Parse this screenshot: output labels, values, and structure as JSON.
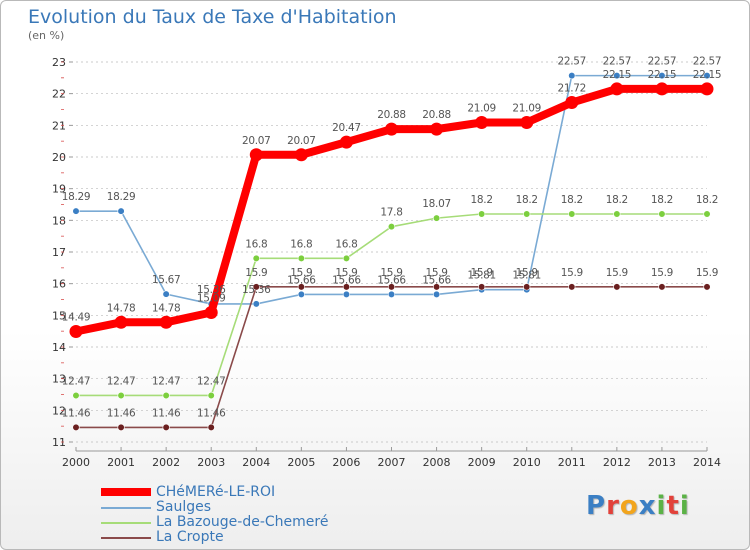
{
  "title": "Evolution du Taux de Taxe d'Habitation",
  "subtitle": "(en %)",
  "colors": {
    "title": "#3a78b8",
    "grid": "#bbbbbb",
    "axis_text": "#333333",
    "value_text": "#555555"
  },
  "logo": {
    "text": "Proxiti",
    "letters": [
      {
        "ch": "P",
        "color": "#3b7fc4"
      },
      {
        "ch": "r",
        "color": "#e2413a"
      },
      {
        "ch": "o",
        "color": "#f2a51d"
      },
      {
        "ch": "x",
        "color": "#3b7fc4"
      },
      {
        "ch": "i",
        "color": "#5bb246"
      },
      {
        "ch": "t",
        "color": "#e2413a"
      },
      {
        "ch": "i",
        "color": "#5bb246"
      }
    ]
  },
  "chart_data": {
    "type": "line",
    "title": "Evolution du Taux de Taxe d'Habitation",
    "ylabel": "(en %)",
    "xlabel": "",
    "x": [
      2000,
      2001,
      2002,
      2003,
      2004,
      2005,
      2006,
      2007,
      2008,
      2009,
      2010,
      2011,
      2012,
      2013,
      2014
    ],
    "y_ticks": [
      11,
      12,
      13,
      14,
      15,
      16,
      17,
      18,
      19,
      20,
      21,
      22,
      23
    ],
    "ylim": [
      11,
      23
    ],
    "grid": "horizontal dashed",
    "legend_position": "bottom-left",
    "series": [
      {
        "name": "CHéMERé-LE-ROI",
        "color": "#ff0000",
        "marker": "#ff0000",
        "values": [
          14.49,
          14.78,
          14.78,
          15.09,
          20.07,
          20.07,
          20.47,
          20.88,
          20.88,
          21.09,
          21.09,
          21.72,
          22.15,
          22.15,
          22.15
        ],
        "labels": [
          "14.49",
          "14.78",
          "14.78",
          "15.09",
          "20.07",
          "20.07",
          "20.47",
          "20.88",
          "20.88",
          "21.09",
          "21.09",
          "21.72",
          "22.15",
          "22.15",
          "22.15"
        ]
      },
      {
        "name": "Saulges",
        "color": "#7aaad4",
        "marker": "#3b7fc4",
        "values": [
          18.29,
          18.29,
          15.67,
          15.36,
          15.36,
          15.66,
          15.66,
          15.66,
          15.66,
          15.81,
          15.81,
          22.57,
          22.57,
          22.57,
          22.57
        ],
        "labels": [
          "18.29",
          "18.29",
          "15.67",
          "15.36",
          "15.36",
          "15.66",
          "15.66",
          "15.66",
          "15.66",
          "15.81",
          "15.81",
          "22.57",
          "22.57",
          "22.57",
          "22.57"
        ]
      },
      {
        "name": "La Bazouge-de-Chemeré",
        "color": "#a6dc78",
        "marker": "#7ccf3e",
        "values": [
          12.47,
          12.47,
          12.47,
          12.47,
          16.8,
          16.8,
          16.8,
          17.8,
          18.07,
          18.2,
          18.2,
          18.2,
          18.2,
          18.2,
          18.2
        ],
        "labels": [
          "12.47",
          "12.47",
          "12.47",
          "12.47",
          "16.8",
          "16.8",
          "16.8",
          "17.8",
          "18.07",
          "18.2",
          "18.2",
          "18.2",
          "18.2",
          "18.2",
          "18.2"
        ]
      },
      {
        "name": "La Cropte",
        "color": "#8a4a4a",
        "marker": "#6b2020",
        "values": [
          11.46,
          11.46,
          11.46,
          11.46,
          15.9,
          15.9,
          15.9,
          15.9,
          15.9,
          15.9,
          15.9,
          15.9,
          15.9,
          15.9,
          15.9
        ],
        "labels": [
          "11.46",
          "11.46",
          "11.46",
          "11.46",
          "15.9",
          "15.9",
          "15.9",
          "15.9",
          "15.9",
          "15.9",
          "15.9",
          "15.9",
          "15.9",
          "15.9",
          "15.9"
        ]
      }
    ]
  }
}
